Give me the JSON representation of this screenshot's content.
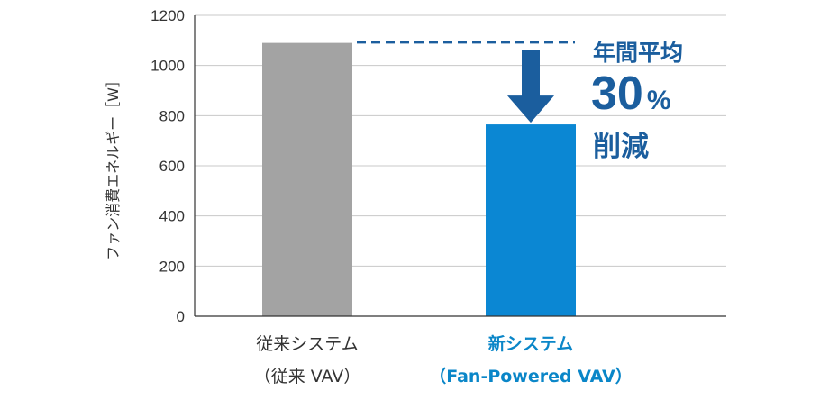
{
  "chart_data": {
    "type": "bar",
    "ylabel": "ファン消費エネルギー［W］",
    "ylim": [
      0,
      1200
    ],
    "yticks": [
      0,
      200,
      400,
      600,
      800,
      1000,
      1200
    ],
    "grid": true,
    "categories": [
      {
        "line1": "従来システム",
        "line2": "（従来 VAV）",
        "value": 1090,
        "color": "#a3a3a3",
        "label_color": "#333333"
      },
      {
        "line1": "新システム",
        "line2": "（Fan-Powered VAV）",
        "value": 765,
        "color": "#0b87d3",
        "label_color": "#0a86c8"
      }
    ],
    "annotation": {
      "line1": "年間平均",
      "percent_value": "30",
      "percent_sign": "%",
      "line3": "削減",
      "color": "#1b5e9e"
    }
  }
}
